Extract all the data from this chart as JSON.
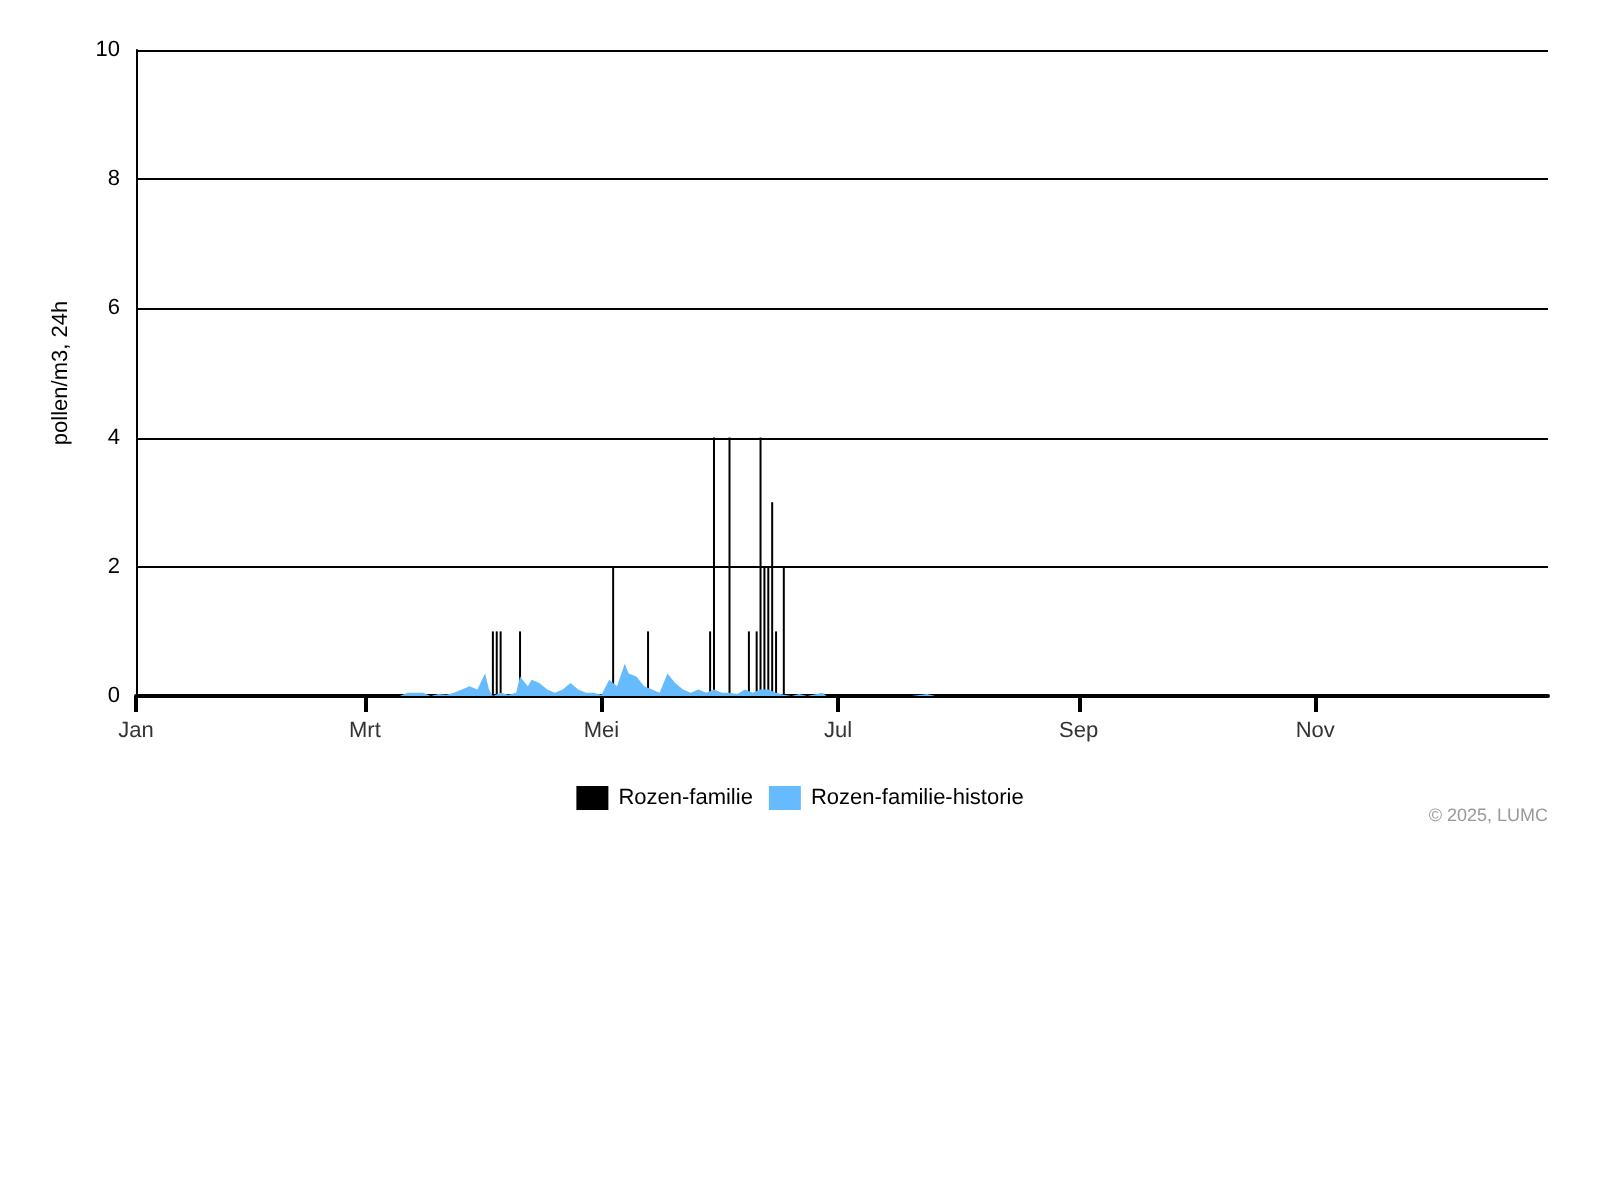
{
  "chart_data": {
    "type": "bar",
    "ylabel": "pollen/m3, 24h",
    "annotations": [
      "© 2025, LUMC"
    ],
    "xlim": [
      "2025-01-01",
      "2025-12-31"
    ],
    "xticks": [
      {
        "value": "2025-01-01",
        "label": "Jan"
      },
      {
        "value": "2025-03-01",
        "label": "Mrt"
      },
      {
        "value": "2025-05-01",
        "label": "Mei"
      },
      {
        "value": "2025-07-01",
        "label": "Jul"
      },
      {
        "value": "2025-09-01",
        "label": "Sep"
      },
      {
        "value": "2025-11-01",
        "label": "Nov"
      }
    ],
    "ylim": [
      0,
      10
    ],
    "yticks": [
      0,
      2,
      4,
      6,
      8,
      10
    ],
    "grid": "y",
    "legend": "bottom",
    "series": [
      {
        "name": "Rozen-familie",
        "color": "#000000",
        "x": [
          "2025-04-03",
          "2025-04-04",
          "2025-04-05",
          "2025-04-10",
          "2025-05-04",
          "2025-05-13",
          "2025-05-29",
          "2025-05-30",
          "2025-06-03",
          "2025-06-08",
          "2025-06-10",
          "2025-06-11",
          "2025-06-12",
          "2025-06-13",
          "2025-06-14",
          "2025-06-15",
          "2025-06-17"
        ],
        "values": [
          1,
          1,
          1,
          1,
          2,
          1,
          1,
          4,
          4,
          1,
          1,
          4,
          2,
          2,
          3,
          1,
          2
        ]
      },
      {
        "name": "Rozen-familie-historie",
        "type": "area",
        "color": "#66bbff",
        "x": [
          "2025-03-10",
          "2025-03-12",
          "2025-03-14",
          "2025-03-16",
          "2025-03-18",
          "2025-03-20",
          "2025-03-22",
          "2025-03-24",
          "2025-03-26",
          "2025-03-28",
          "2025-03-30",
          "2025-04-01",
          "2025-04-02",
          "2025-04-03",
          "2025-04-05",
          "2025-04-07",
          "2025-04-09",
          "2025-04-10",
          "2025-04-12",
          "2025-04-13",
          "2025-04-15",
          "2025-04-17",
          "2025-04-19",
          "2025-04-21",
          "2025-04-23",
          "2025-04-25",
          "2025-04-27",
          "2025-04-29",
          "2025-05-01",
          "2025-05-03",
          "2025-05-05",
          "2025-05-07",
          "2025-05-08",
          "2025-05-10",
          "2025-05-12",
          "2025-05-14",
          "2025-05-16",
          "2025-05-18",
          "2025-05-20",
          "2025-05-22",
          "2025-05-24",
          "2025-05-26",
          "2025-05-28",
          "2025-05-30",
          "2025-06-01",
          "2025-06-03",
          "2025-06-05",
          "2025-06-07",
          "2025-06-09",
          "2025-06-11",
          "2025-06-13",
          "2025-06-15",
          "2025-06-17",
          "2025-06-19",
          "2025-06-21",
          "2025-06-23",
          "2025-06-27",
          "2025-06-28",
          "2025-07-20",
          "2025-07-24",
          "2025-07-26"
        ],
        "values": [
          0,
          0.05,
          0.05,
          0.05,
          0,
          0.03,
          0.02,
          0.05,
          0.1,
          0.15,
          0.1,
          0.35,
          0.1,
          0,
          0.05,
          0.02,
          0.05,
          0.3,
          0.15,
          0.25,
          0.2,
          0.1,
          0.05,
          0.1,
          0.2,
          0.1,
          0.05,
          0.05,
          0.02,
          0.25,
          0.15,
          0.5,
          0.35,
          0.3,
          0.15,
          0.1,
          0.05,
          0.35,
          0.2,
          0.1,
          0.05,
          0.1,
          0.05,
          0.1,
          0.05,
          0.05,
          0.03,
          0.1,
          0.05,
          0.1,
          0.1,
          0.05,
          0.02,
          0,
          0.03,
          0,
          0.05,
          0,
          0,
          0.03,
          0
        ]
      }
    ]
  }
}
